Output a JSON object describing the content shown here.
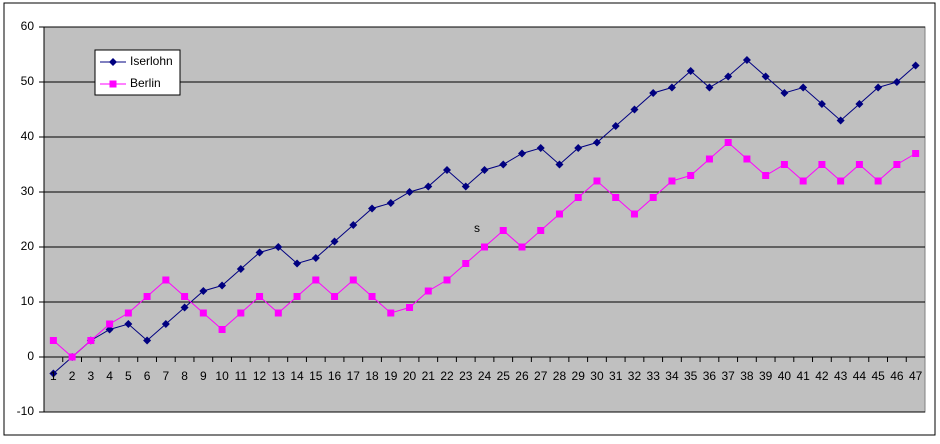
{
  "chart_data": {
    "type": "line",
    "categories": [
      "1",
      "2",
      "3",
      "4",
      "5",
      "6",
      "7",
      "8",
      "9",
      "10",
      "11",
      "12",
      "13",
      "14",
      "15",
      "16",
      "17",
      "18",
      "19",
      "20",
      "21",
      "22",
      "23",
      "24",
      "25",
      "26",
      "27",
      "28",
      "29",
      "30",
      "31",
      "32",
      "33",
      "34",
      "35",
      "36",
      "37",
      "38",
      "39",
      "40",
      "41",
      "42",
      "43",
      "44",
      "45",
      "46",
      "47"
    ],
    "series": [
      {
        "name": "Iserlohn",
        "color": "#000080",
        "marker": "diamond",
        "values": [
          -3,
          0,
          3,
          5,
          6,
          3,
          6,
          9,
          12,
          13,
          16,
          19,
          20,
          17,
          18,
          21,
          24,
          27,
          28,
          30,
          31,
          34,
          31,
          34,
          35,
          37,
          38,
          35,
          38,
          39,
          42,
          45,
          48,
          49,
          52,
          49,
          51,
          54,
          51,
          48,
          49,
          46,
          43,
          46,
          49,
          50,
          53
        ]
      },
      {
        "name": "Berlin",
        "color": "#ff00ff",
        "marker": "square",
        "values": [
          3,
          0,
          3,
          6,
          8,
          11,
          14,
          11,
          8,
          5,
          8,
          11,
          8,
          11,
          14,
          11,
          14,
          11,
          8,
          9,
          12,
          14,
          17,
          20,
          23,
          20,
          23,
          26,
          29,
          32,
          29,
          26,
          29,
          32,
          33,
          36,
          39,
          36,
          33,
          35,
          32,
          35,
          32,
          35,
          32,
          35,
          37
        ]
      }
    ],
    "annotation": "s",
    "ylim": [
      -10,
      60
    ],
    "yticks": [
      -10,
      0,
      10,
      20,
      30,
      40,
      50,
      60
    ],
    "grid": true,
    "legend": "top-left"
  }
}
